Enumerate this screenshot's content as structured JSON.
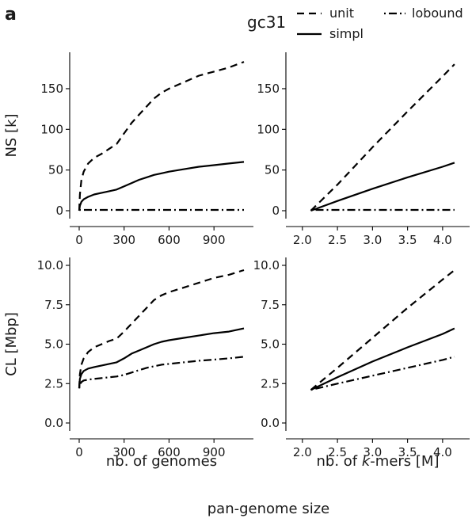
{
  "panel_label": "a",
  "legend": {
    "title": "gc31",
    "entries": [
      {
        "label": "unit",
        "dash": "dashed"
      },
      {
        "label": "lobound",
        "dash": "dotdash"
      },
      {
        "label": "simpl",
        "dash": "solid"
      }
    ]
  },
  "global_xlabel": "pan-genome size",
  "chart_data": [
    {
      "type": "line",
      "panel": "top-left",
      "ylabel": "NS [k]",
      "xlabel": "",
      "xlim": [
        0,
        1100
      ],
      "ylim": [
        0,
        185
      ],
      "xticks": [
        0,
        300,
        600,
        900
      ],
      "yticks": [
        0,
        50,
        100,
        150
      ],
      "grid": false,
      "series": [
        {
          "name": "unit",
          "dash": "dashed",
          "x": [
            0,
            5,
            15,
            30,
            60,
            100,
            150,
            200,
            250,
            300,
            350,
            400,
            450,
            500,
            550,
            600,
            700,
            800,
            900,
            1000,
            1100
          ],
          "y": [
            0,
            20,
            38,
            48,
            58,
            65,
            70,
            76,
            82,
            95,
            108,
            118,
            128,
            138,
            145,
            150,
            158,
            166,
            171,
            176,
            183
          ]
        },
        {
          "name": "simpl",
          "dash": "solid",
          "x": [
            0,
            5,
            15,
            30,
            60,
            100,
            150,
            200,
            250,
            300,
            350,
            400,
            450,
            500,
            550,
            600,
            700,
            800,
            900,
            1000,
            1100
          ],
          "y": [
            0,
            6,
            11,
            14,
            17,
            20,
            22,
            24,
            26,
            30,
            34,
            38,
            41,
            44,
            46,
            48,
            51,
            54,
            56,
            58,
            60
          ]
        },
        {
          "name": "lobound",
          "dash": "dotdash",
          "x": [
            0,
            10,
            100,
            300,
            600,
            900,
            1100
          ],
          "y": [
            1,
            1,
            1,
            1,
            1,
            1,
            1
          ]
        }
      ]
    },
    {
      "type": "line",
      "panel": "top-right",
      "ylabel": "",
      "xlabel": "",
      "xlim": [
        1.9,
        4.25
      ],
      "ylim": [
        0,
        185
      ],
      "xticks": [
        2.0,
        2.5,
        3.0,
        3.5,
        4.0
      ],
      "yticks": [
        0,
        50,
        100,
        150
      ],
      "grid": false,
      "series": [
        {
          "name": "unit",
          "dash": "dashed",
          "x": [
            2.12,
            2.5,
            3.0,
            3.5,
            4.0,
            4.17
          ],
          "y": [
            0,
            32,
            78,
            122,
            165,
            180
          ]
        },
        {
          "name": "simpl",
          "dash": "solid",
          "x": [
            2.12,
            2.5,
            3.0,
            3.5,
            4.0,
            4.17
          ],
          "y": [
            0,
            12,
            27,
            41,
            54,
            59
          ]
        },
        {
          "name": "lobound",
          "dash": "dotdash",
          "x": [
            2.12,
            3.0,
            4.17
          ],
          "y": [
            1,
            1,
            1
          ]
        }
      ]
    },
    {
      "type": "line",
      "panel": "bottom-left",
      "ylabel": "CL [Mbp]",
      "xlabel": "nb. of genomes",
      "xlim": [
        0,
        1100
      ],
      "ylim": [
        0,
        10
      ],
      "xticks": [
        0,
        300,
        600,
        900
      ],
      "yticks": [
        0.0,
        2.5,
        5.0,
        7.5,
        10.0
      ],
      "grid": false,
      "series": [
        {
          "name": "unit",
          "dash": "dashed",
          "x": [
            0,
            5,
            15,
            30,
            60,
            100,
            150,
            200,
            250,
            300,
            350,
            400,
            450,
            500,
            550,
            600,
            700,
            800,
            900,
            1000,
            1100
          ],
          "y": [
            2.2,
            3.1,
            3.7,
            4.1,
            4.5,
            4.8,
            5.0,
            5.2,
            5.35,
            5.8,
            6.3,
            6.8,
            7.3,
            7.8,
            8.1,
            8.3,
            8.6,
            8.9,
            9.2,
            9.4,
            9.7
          ]
        },
        {
          "name": "simpl",
          "dash": "solid",
          "x": [
            0,
            5,
            15,
            30,
            60,
            100,
            150,
            200,
            250,
            300,
            350,
            400,
            450,
            500,
            550,
            600,
            700,
            800,
            900,
            1000,
            1100
          ],
          "y": [
            2.2,
            2.8,
            3.1,
            3.3,
            3.45,
            3.55,
            3.65,
            3.75,
            3.85,
            4.1,
            4.4,
            4.6,
            4.8,
            5.0,
            5.15,
            5.25,
            5.4,
            5.55,
            5.7,
            5.8,
            6.0
          ]
        },
        {
          "name": "lobound",
          "dash": "dotdash",
          "x": [
            0,
            5,
            15,
            30,
            60,
            100,
            150,
            200,
            250,
            300,
            350,
            400,
            450,
            500,
            550,
            600,
            700,
            800,
            900,
            1000,
            1100
          ],
          "y": [
            2.2,
            2.45,
            2.6,
            2.7,
            2.75,
            2.8,
            2.85,
            2.9,
            2.95,
            3.05,
            3.2,
            3.35,
            3.5,
            3.6,
            3.7,
            3.75,
            3.85,
            3.95,
            4.02,
            4.1,
            4.2
          ]
        }
      ]
    },
    {
      "type": "line",
      "panel": "bottom-right",
      "ylabel": "",
      "xlabel": "nb. of k-mers [M]",
      "xlim": [
        1.9,
        4.25
      ],
      "ylim": [
        0,
        10
      ],
      "xticks": [
        2.0,
        2.5,
        3.0,
        3.5,
        4.0
      ],
      "yticks": [
        0.0,
        2.5,
        5.0,
        7.5,
        10.0
      ],
      "grid": false,
      "series": [
        {
          "name": "unit",
          "dash": "dashed",
          "x": [
            2.12,
            2.5,
            3.0,
            3.5,
            4.0,
            4.17
          ],
          "y": [
            2.1,
            3.5,
            5.4,
            7.3,
            9.1,
            9.7
          ]
        },
        {
          "name": "simpl",
          "dash": "solid",
          "x": [
            2.12,
            2.5,
            3.0,
            3.5,
            4.0,
            4.17
          ],
          "y": [
            2.1,
            2.9,
            3.9,
            4.8,
            5.65,
            6.0
          ]
        },
        {
          "name": "lobound",
          "dash": "dotdash",
          "x": [
            2.12,
            2.5,
            3.0,
            3.5,
            4.0,
            4.17
          ],
          "y": [
            2.1,
            2.5,
            3.0,
            3.5,
            4.0,
            4.2
          ]
        }
      ]
    }
  ]
}
